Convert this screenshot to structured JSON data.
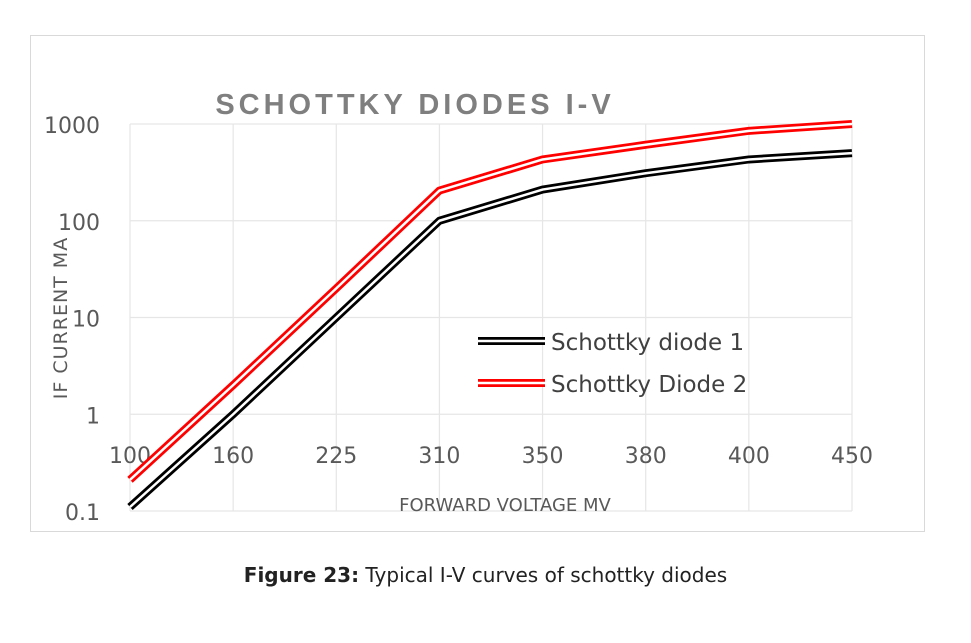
{
  "chart_data": {
    "type": "line",
    "title": "SCHOTTKY DIODES I-V",
    "xlabel": "FORWARD VOLTAGE MV",
    "ylabel": "IF CURRENT MA",
    "yscale": "log",
    "ylim": [
      0.1,
      1000
    ],
    "yticks": [
      "0.1",
      "1",
      "10",
      "100",
      "1000"
    ],
    "categories": [
      "100",
      "160",
      "225",
      "310",
      "350",
      "380",
      "400",
      "450"
    ],
    "grid": true,
    "legend_position": "center-right",
    "series": [
      {
        "name": "Schottky diode 1",
        "color": "#000000",
        "values": [
          0.11,
          1,
          10,
          100,
          210,
          310,
          430,
          500
        ]
      },
      {
        "name": "Schottky Diode 2",
        "color": "#ff0000",
        "values": [
          0.21,
          2,
          20,
          205,
          430,
          610,
          850,
          1000
        ]
      }
    ]
  },
  "caption": {
    "label": "Figure 23:",
    "text": " Typical I-V curves of schottky diodes"
  }
}
